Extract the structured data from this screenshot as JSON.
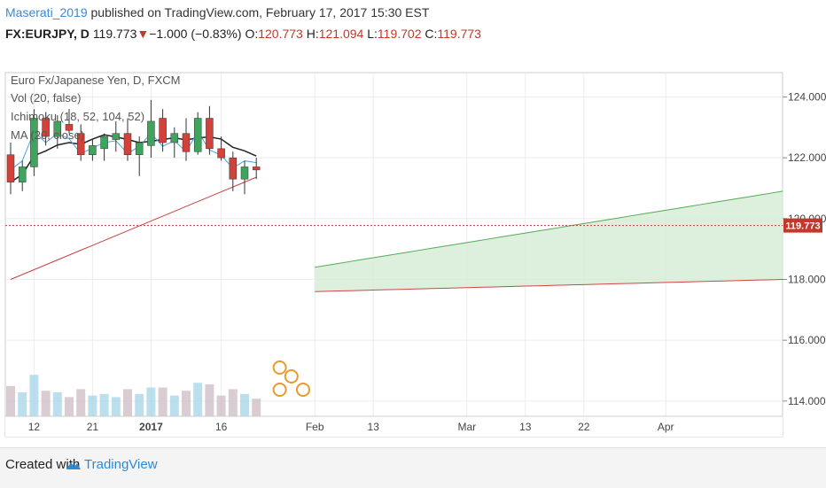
{
  "header": {
    "author": "Maserati_2019",
    "published_text": " published on TradingView.com, February 17, 2017 15:30 EST",
    "symbol": "FX:EURJPY, D",
    "last": "119.773",
    "change_arrow": "▼",
    "change": "−1.000 (−0.83%)",
    "o_label": "O:",
    "o_value": "120.773",
    "h_label": "H:",
    "h_value": "121.094",
    "l_label": "L:",
    "l_value": "119.702",
    "c_label": "C:",
    "c_value": "119.773"
  },
  "legend": {
    "title": "Euro Fx/Japanese Yen, D, FXCM",
    "vol": "Vol (20, false)",
    "ichimoku": "Ichimoku (18, 52, 104, 52)",
    "ma": "MA (20, close)"
  },
  "price_tag": "119.773",
  "footer": {
    "created_with": "Created with",
    "brand": "TradingView"
  },
  "colors": {
    "up": "#3fa45d",
    "down": "#d2413a",
    "ma": "#222222",
    "tenkan": "#4aa3df",
    "kijun": "#c94040",
    "chikou": "#2e8b57",
    "cloud_green": "#d4ecd4",
    "cloud_red": "#f6d0d0",
    "span_a": "#55aa55",
    "span_b": "#d24545",
    "vol_up": "#9fd1e6",
    "vol_down": "#c9b8c0"
  },
  "chart_data": {
    "type": "candlestick",
    "title": "Euro Fx/Japanese Yen, D, FXCM",
    "y_ticks": [
      114,
      116,
      118,
      120,
      122,
      124
    ],
    "y_tick_labels": [
      "114.000",
      "116.000",
      "118.000",
      "120.000",
      "122.000",
      "124.000"
    ],
    "ylim": [
      113.5,
      124.8
    ],
    "x_tick_labels": [
      {
        "slot": 2,
        "label": "12"
      },
      {
        "slot": 7,
        "label": "21"
      },
      {
        "slot": 12,
        "label": "2017"
      },
      {
        "slot": 18,
        "label": "16"
      },
      {
        "slot": 26,
        "label": "Feb"
      },
      {
        "slot": 31,
        "label": "13"
      },
      {
        "slot": 39,
        "label": "Mar"
      },
      {
        "slot": 44,
        "label": "13"
      },
      {
        "slot": 49,
        "label": "22"
      },
      {
        "slot": 56,
        "label": "Apr"
      }
    ],
    "last_close": 119.773,
    "candles": [
      {
        "o": 122.1,
        "h": 122.5,
        "l": 120.8,
        "c": 121.2
      },
      {
        "o": 121.2,
        "h": 121.9,
        "l": 120.9,
        "c": 121.7
      },
      {
        "o": 121.7,
        "h": 123.6,
        "l": 121.4,
        "c": 123.3
      },
      {
        "o": 123.3,
        "h": 123.5,
        "l": 122.4,
        "c": 122.7
      },
      {
        "o": 122.7,
        "h": 123.4,
        "l": 122.3,
        "c": 123.2
      },
      {
        "o": 123.1,
        "h": 123.6,
        "l": 122.8,
        "c": 122.9
      },
      {
        "o": 122.8,
        "h": 123.1,
        "l": 121.9,
        "c": 122.1
      },
      {
        "o": 122.1,
        "h": 122.6,
        "l": 121.9,
        "c": 122.4
      },
      {
        "o": 122.3,
        "h": 122.8,
        "l": 121.9,
        "c": 122.7
      },
      {
        "o": 122.6,
        "h": 123.2,
        "l": 122.2,
        "c": 122.8
      },
      {
        "o": 122.8,
        "h": 123.3,
        "l": 121.9,
        "c": 122.1
      },
      {
        "o": 122.1,
        "h": 122.7,
        "l": 121.4,
        "c": 122.5
      },
      {
        "o": 122.4,
        "h": 123.9,
        "l": 122.0,
        "c": 123.2
      },
      {
        "o": 123.3,
        "h": 123.6,
        "l": 122.2,
        "c": 122.5
      },
      {
        "o": 122.5,
        "h": 123.0,
        "l": 122.0,
        "c": 122.8
      },
      {
        "o": 122.8,
        "h": 123.3,
        "l": 121.9,
        "c": 122.2
      },
      {
        "o": 122.2,
        "h": 123.5,
        "l": 122.1,
        "c": 123.3
      },
      {
        "o": 123.3,
        "h": 123.7,
        "l": 122.1,
        "c": 122.3
      },
      {
        "o": 122.3,
        "h": 122.7,
        "l": 121.9,
        "c": 122.0
      },
      {
        "o": 122.0,
        "h": 122.2,
        "l": 120.9,
        "c": 121.3
      },
      {
        "o": 121.3,
        "h": 121.9,
        "l": 120.8,
        "c": 121.7
      },
      {
        "o": 121.7,
        "h": 122.0,
        "l": 121.3,
        "c": 121.6
      }
    ]
  }
}
